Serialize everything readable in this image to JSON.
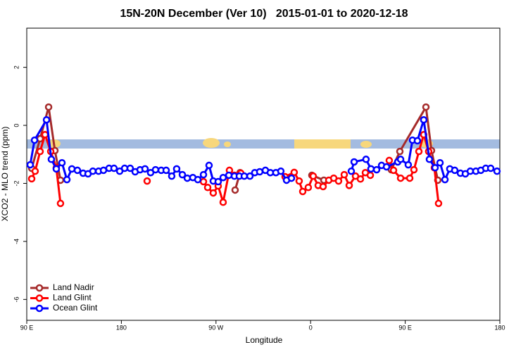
{
  "chart_data": {
    "type": "line",
    "title": "15N-20N December (Ver 10)   2015-01-01 to 2020-12-18",
    "x_label": "Longitude",
    "y_label": "XCO2 - MLO trend (ppm)",
    "xlim": [
      90,
      540
    ],
    "ylim": [
      -6.72,
      3.35
    ],
    "xticks": [
      {
        "value": 90,
        "label": "90 E"
      },
      180,
      {
        "value": 270,
        "label": "90 W"
      },
      {
        "value": 360,
        "label": "0"
      },
      {
        "value": 450,
        "label": "90 E"
      },
      {
        "value": 540,
        "label": "180"
      }
    ],
    "yticks": [
      2,
      0,
      -2,
      -4,
      -6
    ],
    "legend": "bottom-left",
    "series": [
      {
        "name": "Land Nadir",
        "color": "#a52a2a",
        "x": [
          94.7,
          102.7,
          110.8,
          116.8,
          122.1,
          null,
          288.2,
          292.9,
          null,
          361.2,
          372.6,
          null,
          436.8,
          444.9,
          469.7,
          475.0,
          481.0
        ],
        "values": [
          -1.48,
          -0.46,
          0.63,
          -0.87,
          -1.89,
          null,
          -2.23,
          -1.63,
          null,
          -1.72,
          -1.89,
          null,
          -1.53,
          -0.9,
          0.63,
          -0.87,
          -1.89
        ]
      },
      {
        "name": "Land Glint",
        "color": "#ff0000",
        "x": [
          94.7,
          98.0,
          102.7,
          107.4,
          112.8,
          118.1,
          122.1,
          null,
          204.5,
          null,
          258.1,
          262.1,
          267.4,
          272.1,
          276.8,
          282.8,
          287.5,
          293.6,
          null,
          335.7,
          344.4,
          349.1,
          352.5,
          357.8,
          362.5,
          367.2,
          371.9,
          377.3,
          382.0,
          386.6,
          392.0,
          396.7,
          402.7,
          407.4,
          412.1,
          416.8,
          null,
          434.8,
          438.9,
          445.6,
          454.3,
          458.3,
          463.0,
          467.6,
          472.3,
          477.7,
          481.7
        ],
        "values": [
          -1.84,
          -1.58,
          -0.9,
          -0.32,
          -0.9,
          -1.46,
          -2.69,
          null,
          -1.92,
          null,
          -1.94,
          -2.14,
          -2.33,
          -2.09,
          -2.65,
          -1.55,
          -1.72,
          -1.65,
          null,
          -1.77,
          -1.62,
          -1.92,
          -2.28,
          -2.14,
          -1.75,
          -2.07,
          -2.11,
          -1.89,
          -1.82,
          -1.92,
          -1.7,
          -2.07,
          -1.75,
          -1.85,
          -1.63,
          -1.72,
          null,
          -1.21,
          -1.55,
          -1.82,
          -1.82,
          -1.53,
          -0.9,
          -0.32,
          -0.9,
          -1.46,
          -2.69
        ]
      },
      {
        "name": "Ocean Glint",
        "color": "#0000ff",
        "x": [
          93.3,
          97.4,
          108.8,
          113.4,
          118.1,
          123.5,
          128.2,
          132.9,
          138.2,
          143.6,
          148.3,
          152.9,
          158.3,
          163.0,
          168.3,
          173.0,
          178.4,
          183.1,
          188.4,
          193.1,
          197.8,
          202.5,
          207.8,
          212.5,
          217.9,
          222.6,
          227.9,
          232.6,
          238.0,
          242.7,
          248.0,
          252.7,
          258.1,
          263.4,
          267.4,
          272.1,
          276.8,
          282.2,
          287.5,
          292.2,
          296.9,
          302.3,
          306.9,
          311.6,
          317.0,
          321.7,
          327.0,
          331.7,
          337.1,
          341.8,
          null,
          398.7,
          401.4,
          412.7,
          417.4,
          422.8,
          427.5,
          432.2,
          442.9,
          445.6,
          452.9,
          456.9,
          461.6,
          467.6,
          473.0,
          478.4,
          483.1,
          487.8,
          492.4,
          497.1,
          502.5,
          507.2,
          511.9,
          517.2,
          521.9,
          526.6,
          531.3,
          537.3
        ],
        "values": [
          -1.36,
          -0.51,
          0.19,
          -1.17,
          -1.5,
          -1.29,
          -1.87,
          -1.5,
          -1.55,
          -1.65,
          -1.67,
          -1.58,
          -1.58,
          -1.55,
          -1.48,
          -1.48,
          -1.58,
          -1.48,
          -1.48,
          -1.6,
          -1.53,
          -1.5,
          -1.63,
          -1.53,
          -1.55,
          -1.55,
          -1.75,
          -1.5,
          -1.7,
          -1.82,
          -1.8,
          -1.87,
          -1.7,
          -1.38,
          -1.92,
          -1.94,
          -1.8,
          -1.72,
          -1.75,
          -1.75,
          -1.75,
          -1.75,
          -1.63,
          -1.6,
          -1.55,
          -1.63,
          -1.63,
          -1.58,
          -1.89,
          -1.82,
          null,
          -1.58,
          -1.26,
          -1.17,
          -1.5,
          -1.53,
          -1.38,
          -1.43,
          -1.26,
          -1.17,
          -1.36,
          -0.51,
          -0.53,
          0.19,
          -1.17,
          -1.46,
          -1.29,
          -1.87,
          -1.5,
          -1.55,
          -1.65,
          -1.67,
          -1.58,
          -1.58,
          -1.55,
          -1.48,
          -1.48,
          -1.58
        ]
      }
    ]
  }
}
